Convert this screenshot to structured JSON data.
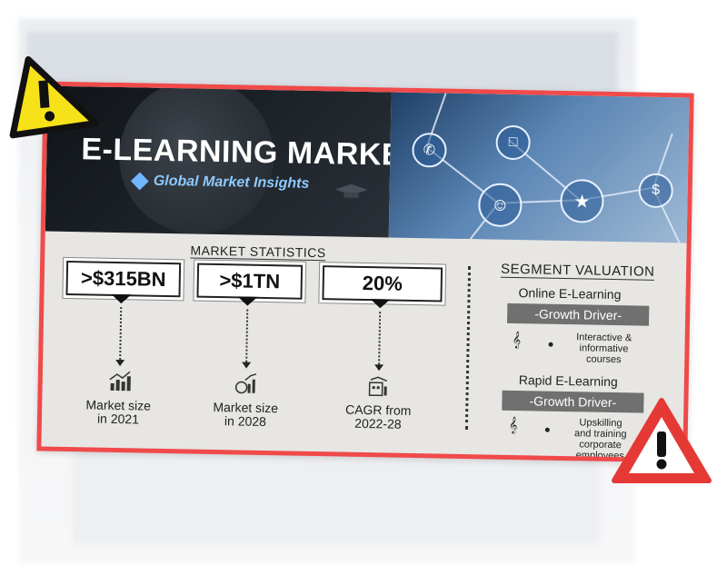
{
  "header": {
    "title": "E-LEARNING MARKET",
    "brand": "Global Market Insights"
  },
  "market_statistics": {
    "heading": "MARKET STATISTICS",
    "stats": [
      {
        "value": ">$315BN",
        "label_line1": "Market size",
        "label_line2": "in 2021",
        "icon": "bar-growth-icon"
      },
      {
        "value": ">$1TN",
        "label_line1": "Market size",
        "label_line2": "in 2028",
        "icon": "coin-growth-icon"
      },
      {
        "value": "20%",
        "label_line1": "CAGR from",
        "label_line2": "2022-28",
        "icon": "building-chart-icon"
      }
    ]
  },
  "segment_valuation": {
    "heading": "SEGMENT VALUATION",
    "segments": [
      {
        "name": "Online E-Learning",
        "driver": "-Growth Driver-",
        "desc": [
          "Interactive &",
          "informative",
          "courses"
        ]
      },
      {
        "name": "Rapid E-Learning",
        "driver": "-Growth Driver-",
        "desc": [
          "Upskilling",
          "and training",
          "corporate",
          "employees"
        ]
      }
    ]
  },
  "network_icons": [
    "phone-icon",
    "chat-icon",
    "user-icon",
    "star-icon",
    "dollar-icon"
  ],
  "warnings": [
    {
      "icon": "warning-yellow-icon",
      "color": "#f7e21a"
    },
    {
      "icon": "warning-red-icon",
      "color": "#e53935"
    }
  ],
  "colors": {
    "frame": "#f04a4a",
    "header_dark": "#15191d",
    "brand": "#8ec9ff",
    "driver_bg": "#707070"
  }
}
